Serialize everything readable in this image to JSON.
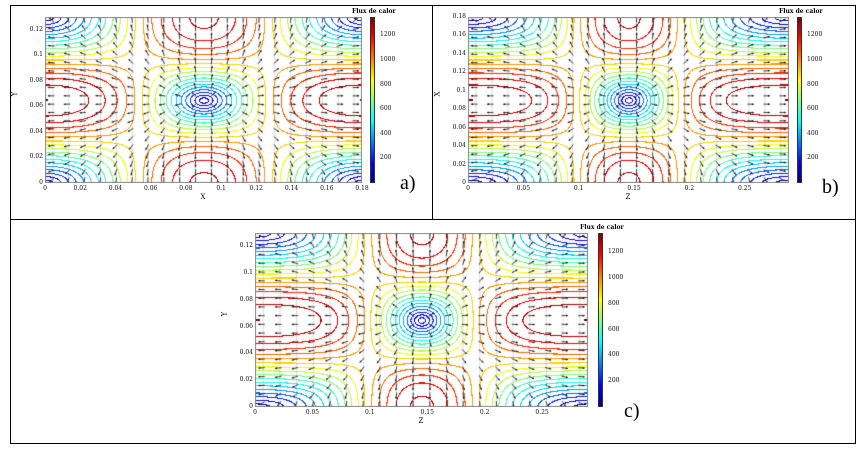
{
  "chart_data": [
    {
      "type": "contour",
      "panel_label": "a)",
      "xlabel": "X",
      "ylabel": "Y",
      "xlim": [
        0,
        0.18
      ],
      "ylim": [
        0,
        0.13
      ],
      "xticks": [
        "0",
        "0.02",
        "0.04",
        "0.06",
        "0.08",
        "0.1",
        "0.12",
        "0.14",
        "0.16",
        "0.18"
      ],
      "yticks": [
        "0",
        "0.02",
        "0.04",
        "0.06",
        "0.08",
        "0.1",
        "0.12"
      ],
      "colorbar": {
        "title": "Flux de calor",
        "range": [
          0,
          1350
        ],
        "ticks": [
          "200",
          "400",
          "600",
          "800",
          "1000",
          "1200"
        ],
        "colormap": "jet"
      },
      "vectors": true
    },
    {
      "type": "contour",
      "panel_label": "b)",
      "xlabel": "Z",
      "ylabel": "X",
      "xlim": [
        0,
        0.29
      ],
      "ylim": [
        0,
        0.18
      ],
      "xticks": [
        "0",
        "0.05",
        "0.1",
        "0.15",
        "0.2",
        "0.25"
      ],
      "yticks": [
        "0",
        "0.02",
        "0.04",
        "0.06",
        "0.08",
        "0.1",
        "0.12",
        "0.14",
        "0.16",
        "0.18"
      ],
      "colorbar": {
        "title": "Flux de calor",
        "range": [
          0,
          1350
        ],
        "ticks": [
          "200",
          "400",
          "600",
          "800",
          "1000",
          "1200"
        ],
        "colormap": "jet"
      },
      "vectors": true
    },
    {
      "type": "contour",
      "panel_label": "c)",
      "xlabel": "Z",
      "ylabel": "Y",
      "xlim": [
        0,
        0.29
      ],
      "ylim": [
        0,
        0.13
      ],
      "xticks": [
        "0",
        "0.05",
        "0.1",
        "0.15",
        "0.2",
        "0.25"
      ],
      "yticks": [
        "0",
        "0.02",
        "0.04",
        "0.06",
        "0.08",
        "0.1",
        "0.12"
      ],
      "colorbar": {
        "title": "Flux de calor",
        "range": [
          0,
          1350
        ],
        "ticks": [
          "200",
          "400",
          "600",
          "800",
          "1000",
          "1200"
        ],
        "colormap": "jet"
      },
      "vectors": true
    }
  ]
}
